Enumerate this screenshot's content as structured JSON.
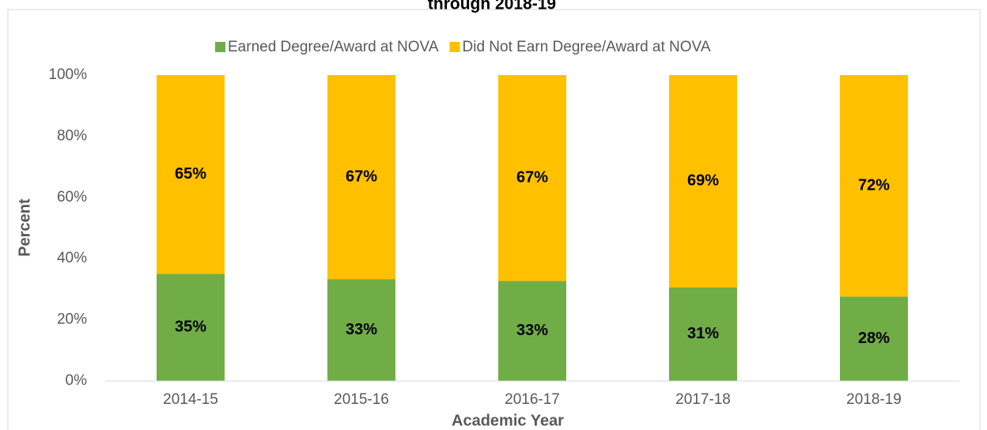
{
  "chart_data": {
    "type": "stacked_bar",
    "title": "through 2018-19",
    "xlabel": "Academic Year",
    "ylabel": "Percent",
    "categories": [
      "2014-15",
      "2015-16",
      "2016-17",
      "2017-18",
      "2018-19"
    ],
    "series": [
      {
        "name": "Earned Degree/Award at NOVA",
        "color": "#70ad47",
        "values": [
          35,
          33.3,
          32.7,
          30.6,
          27.6
        ],
        "value_labels": [
          "35%",
          "33%",
          "33%",
          "31%",
          "28%"
        ]
      },
      {
        "name": "Did Not Earn Degree/Award at NOVA",
        "color": "#ffc000",
        "values": [
          65,
          66.7,
          67.3,
          69.4,
          72.4
        ],
        "value_labels": [
          "65%",
          "67%",
          "67%",
          "69%",
          "72%"
        ]
      }
    ],
    "ylim": [
      0,
      100
    ],
    "yticks": [
      {
        "value": 0,
        "label": "0%"
      },
      {
        "value": 20,
        "label": "20%"
      },
      {
        "value": 40,
        "label": "40%"
      },
      {
        "value": 60,
        "label": "60%"
      },
      {
        "value": 80,
        "label": "80%"
      },
      {
        "value": 100,
        "label": "100%"
      }
    ],
    "grid": false,
    "legend": "top"
  }
}
